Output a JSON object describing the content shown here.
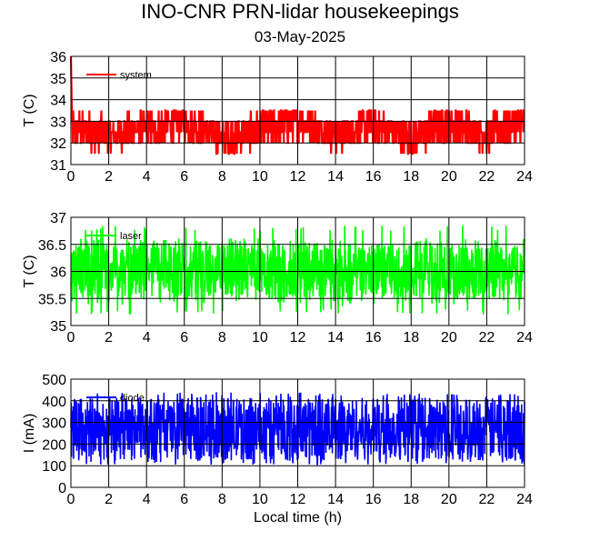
{
  "figure": {
    "title": "INO-CNR PRN-lidar housekeepings",
    "subtitle": "03-May-2025"
  },
  "chart_data": [
    {
      "type": "line",
      "ylabel": "T (C)",
      "xlabel": "",
      "xlim": [
        0,
        24
      ],
      "ylim": [
        31,
        36
      ],
      "xticks": [
        "0",
        "2",
        "4",
        "6",
        "8",
        "10",
        "12",
        "14",
        "16",
        "18",
        "20",
        "22",
        "24"
      ],
      "yticks": [
        "31",
        "32",
        "33",
        "34",
        "35",
        "36"
      ],
      "grid": true,
      "legend_position": "top-left",
      "series": [
        {
          "name": "system",
          "color": "#ff0000",
          "initial_values": [
            36,
            35,
            34.3,
            33.6
          ],
          "low": 31.5,
          "high": 33.5,
          "typical_range": [
            32,
            33
          ],
          "x": [
            0,
            2,
            4,
            6,
            8,
            10,
            12,
            14,
            16,
            18,
            20,
            22,
            24
          ],
          "mean": [
            32.7,
            32.4,
            32.6,
            33.0,
            32.2,
            32.6,
            33.0,
            32.4,
            32.8,
            32.2,
            32.9,
            32.4,
            33.0
          ]
        }
      ]
    },
    {
      "type": "line",
      "ylabel": "T (C)",
      "xlabel": "",
      "xlim": [
        0,
        24
      ],
      "ylim": [
        35,
        37
      ],
      "xticks": [
        "0",
        "2",
        "4",
        "6",
        "8",
        "10",
        "12",
        "14",
        "16",
        "18",
        "20",
        "22",
        "24"
      ],
      "yticks": [
        "35",
        "35.5",
        "36",
        "36.5",
        "37"
      ],
      "grid": true,
      "legend_position": "top-left",
      "series": [
        {
          "name": "laser",
          "color": "#00ff00",
          "mean": 36.0,
          "low": 35.2,
          "high": 36.85
        }
      ]
    },
    {
      "type": "line",
      "ylabel": "I (mA)",
      "xlabel": "Local time (h)",
      "xlim": [
        0,
        24
      ],
      "ylim": [
        0,
        500
      ],
      "xticks": [
        "0",
        "2",
        "4",
        "6",
        "8",
        "10",
        "12",
        "14",
        "16",
        "18",
        "20",
        "22",
        "24"
      ],
      "yticks": [
        "0",
        "100",
        "200",
        "300",
        "400",
        "500"
      ],
      "grid": true,
      "legend_position": "top-left",
      "series": [
        {
          "name": "diode",
          "color": "#0000ff",
          "mean": 270,
          "low": 105,
          "high": 440,
          "band": [
            125,
            415
          ]
        }
      ]
    }
  ]
}
